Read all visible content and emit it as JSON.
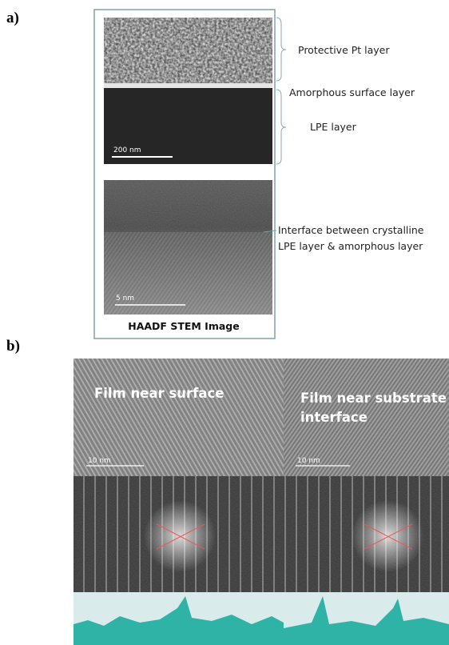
{
  "panel_a": {
    "label": "a)",
    "annotations": [
      "Protective Pt layer",
      "Amorphous surface layer",
      "LPE layer",
      "Interface between crystalline",
      "LPE layer & amorphous layer"
    ],
    "top_scale_bar": "200 nm",
    "bottom_scale_bar": "5 nm",
    "caption": "HAADF STEM Image"
  },
  "panel_b": {
    "label": "b)",
    "images": [
      {
        "title": [
          "Film near surface"
        ],
        "scale_bar": "10 nm"
      },
      {
        "title": [
          "Film near substrate",
          "interface"
        ],
        "scale_bar": "10 nm"
      }
    ]
  }
}
